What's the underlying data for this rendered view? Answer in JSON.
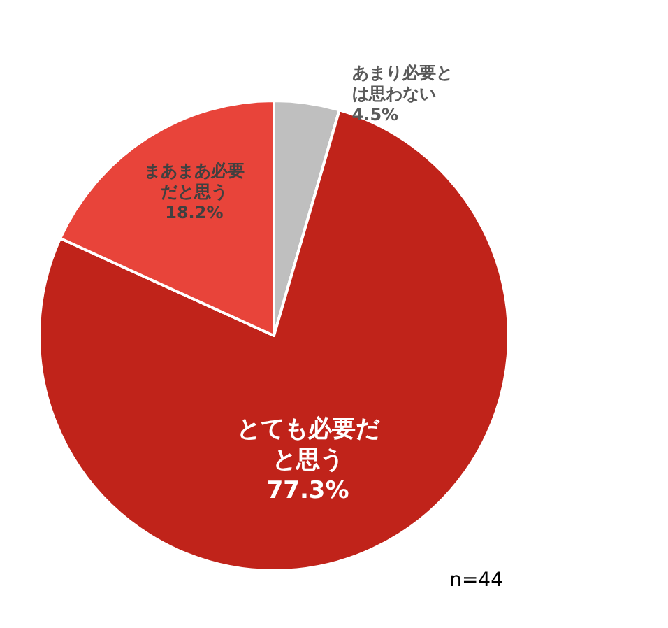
{
  "chart_data": {
    "type": "pie",
    "categories": [
      "あまり必要とは思わない",
      "とても必要だと思う",
      "まあまあ必要だと思う"
    ],
    "values": [
      4.5,
      77.3,
      18.2
    ],
    "colors": [
      "#bfbfbf",
      "#c0231a",
      "#e8443a"
    ],
    "value_labels": [
      "4.5%",
      "77.3%",
      "18.2%"
    ],
    "annotations": [
      "n=44"
    ],
    "legend": false
  }
}
